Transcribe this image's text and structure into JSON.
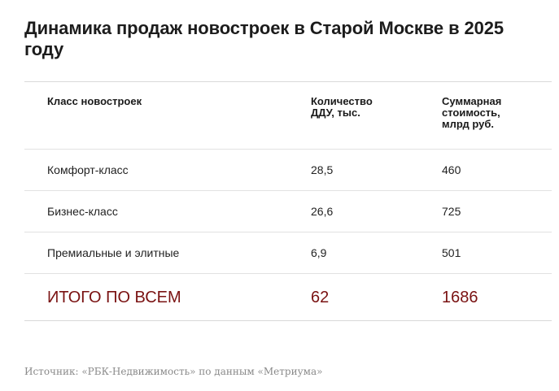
{
  "title": "Динамика продаж новостроек в Старой Москве в 2025 году",
  "table": {
    "headers": {
      "class": "Класс новостроек",
      "count": "Количество ДДУ, тыс.",
      "value": "Суммарная стоимость, млрд руб."
    },
    "rows": [
      {
        "class": "Комфорт-класс",
        "count": "28,5",
        "value": "460"
      },
      {
        "class": "Бизнес-класс",
        "count": "26,6",
        "value": "725"
      },
      {
        "class": "Премиальные и элитные",
        "count": "6,9",
        "value": "501"
      }
    ],
    "total": {
      "class": "ИТОГО ПО ВСЕМ",
      "count": "62",
      "value": "1686"
    }
  },
  "source": "Источник: «РБК-Недвижимость» по данным «Метриума»",
  "colors": {
    "total_text": "#7a1212",
    "source_text": "#8a8a8a",
    "divider": "#e2e2e2"
  }
}
